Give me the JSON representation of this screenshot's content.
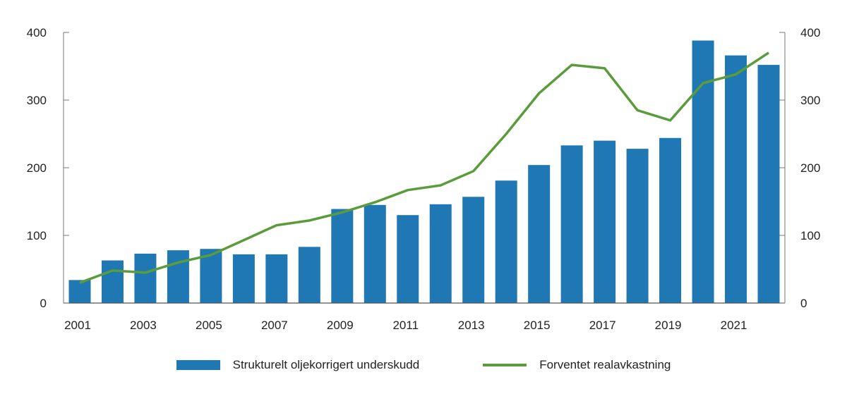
{
  "chart_data": {
    "type": "bar",
    "categories": [
      "2001",
      "2002",
      "2003",
      "2004",
      "2005",
      "2006",
      "2007",
      "2008",
      "2009",
      "2010",
      "2011",
      "2012",
      "2013",
      "2014",
      "2015",
      "2016",
      "2017",
      "2018",
      "2019",
      "2020",
      "2021",
      "2022"
    ],
    "x_tick_labels": [
      "2001",
      "2003",
      "2005",
      "2007",
      "2009",
      "2011",
      "2013",
      "2015",
      "2017",
      "2019",
      "2021"
    ],
    "y_ticks": [
      "0",
      "100",
      "200",
      "300",
      "400"
    ],
    "ylim": [
      0,
      400
    ],
    "y2lim": [
      0,
      400
    ],
    "grid": false,
    "legend_placement": "bottom",
    "series": [
      {
        "name": "Strukturelt oljekorrigert underskudd",
        "type": "bar",
        "color": "#1f78b4",
        "values": [
          34,
          63,
          73,
          78,
          80,
          72,
          72,
          83,
          139,
          145,
          130,
          146,
          157,
          181,
          204,
          233,
          240,
          228,
          244,
          388,
          366,
          352
        ]
      },
      {
        "name": "Forventet realavkastning",
        "type": "line",
        "color": "#5a9b3c",
        "values": [
          30,
          48,
          45,
          60,
          71,
          93,
          115,
          122,
          134,
          149,
          167,
          174,
          195,
          250,
          310,
          352,
          347,
          285,
          270,
          325,
          338,
          370
        ]
      }
    ]
  }
}
